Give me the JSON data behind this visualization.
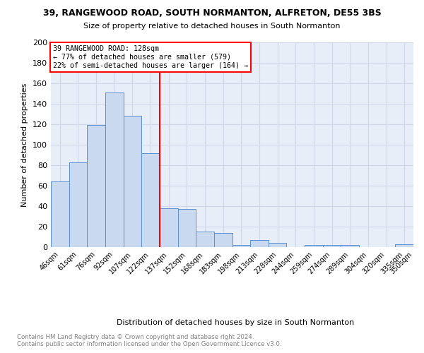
{
  "title1": "39, RANGEWOOD ROAD, SOUTH NORMANTON, ALFRETON, DE55 3BS",
  "title2": "Size of property relative to detached houses in South Normanton",
  "xlabel": "Distribution of detached houses by size in South Normanton",
  "ylabel": "Number of detached properties",
  "footer": "Contains HM Land Registry data © Crown copyright and database right 2024.\nContains public sector information licensed under the Open Government Licence v3.0.",
  "bins": [
    "46sqm",
    "61sqm",
    "76sqm",
    "92sqm",
    "107sqm",
    "122sqm",
    "137sqm",
    "152sqm",
    "168sqm",
    "183sqm",
    "198sqm",
    "213sqm",
    "228sqm",
    "244sqm",
    "259sqm",
    "274sqm",
    "289sqm",
    "304sqm",
    "320sqm",
    "335sqm",
    "350sqm"
  ],
  "values": [
    64,
    83,
    119,
    151,
    128,
    92,
    38,
    37,
    15,
    14,
    2,
    7,
    4,
    0,
    2,
    2,
    2,
    0,
    0,
    3
  ],
  "bar_color": "#c9d9f0",
  "bar_edge_color": "#5b8fd4",
  "vline_color": "red",
  "annotation_text": "39 RANGEWOOD ROAD: 128sqm\n← 77% of detached houses are smaller (579)\n22% of semi-detached houses are larger (164) →",
  "annotation_box_color": "white",
  "annotation_box_edge": "red",
  "ylim": [
    0,
    200
  ],
  "yticks": [
    0,
    20,
    40,
    60,
    80,
    100,
    120,
    140,
    160,
    180,
    200
  ],
  "grid_color": "#d0d8e8",
  "bg_color": "#e8eef8"
}
